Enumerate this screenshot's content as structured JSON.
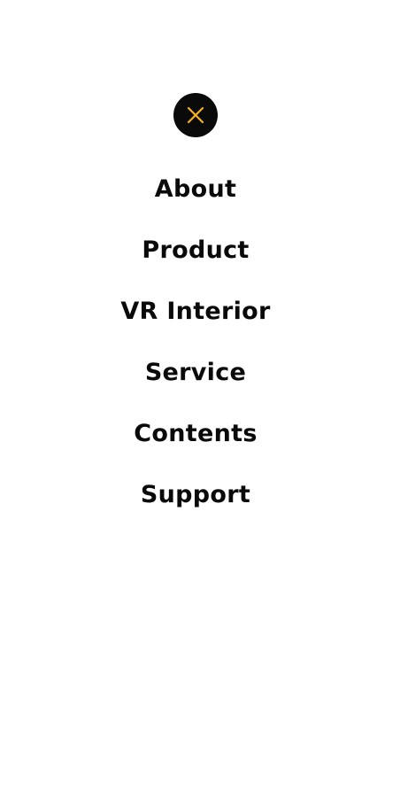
{
  "colors": {
    "background": "#ffffff",
    "text": "#0a0a0a",
    "close_circle": "#0a0a0a",
    "accent": "#f5b21a"
  },
  "close_button": {
    "icon": "close-icon"
  },
  "menu": {
    "items": [
      {
        "label": "About"
      },
      {
        "label": "Product"
      },
      {
        "label": "VR Interior"
      },
      {
        "label": "Service"
      },
      {
        "label": "Contents"
      },
      {
        "label": "Support"
      }
    ]
  }
}
